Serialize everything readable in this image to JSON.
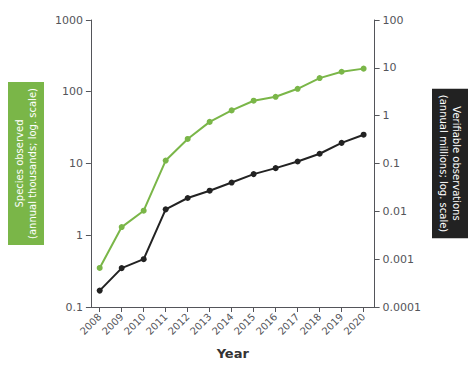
{
  "chart_data": {
    "type": "line",
    "xlabel": "Year",
    "ylabel": "Species observed\n(annual thousands; log. scale)",
    "y2label": "Verifiable observations\n(annual millions; log. scale)",
    "x": [
      2008,
      2009,
      2010,
      2011,
      2012,
      2013,
      2014,
      2015,
      2016,
      2017,
      2018,
      2019,
      2020
    ],
    "xlim": [
      2007.6,
      2020.5
    ],
    "xticks": [
      2008,
      2009,
      2010,
      2011,
      2012,
      2013,
      2014,
      2015,
      2016,
      2017,
      2018,
      2019,
      2020
    ],
    "log": "y",
    "ylim": [
      0.1,
      1000
    ],
    "yticks": [
      0.1,
      1,
      10,
      100,
      1000
    ],
    "y2lim": [
      0.0001,
      100
    ],
    "y2ticks": [
      0.0001,
      0.001,
      0.01,
      0.1,
      1,
      10,
      100
    ],
    "grid": false,
    "series": [
      {
        "color": "#7ab648",
        "marker": "circle",
        "values": [
          0.35,
          1.3,
          2.2,
          11,
          22,
          38,
          55,
          75,
          85,
          110,
          155,
          190,
          210
        ]
      },
      {
        "color": "#222222",
        "marker": "circle",
        "axis": "y2",
        "values": [
          0.00022,
          0.00065,
          0.001,
          0.011,
          0.019,
          0.027,
          0.04,
          0.06,
          0.08,
          0.11,
          0.16,
          0.27,
          0.4
        ]
      }
    ]
  }
}
